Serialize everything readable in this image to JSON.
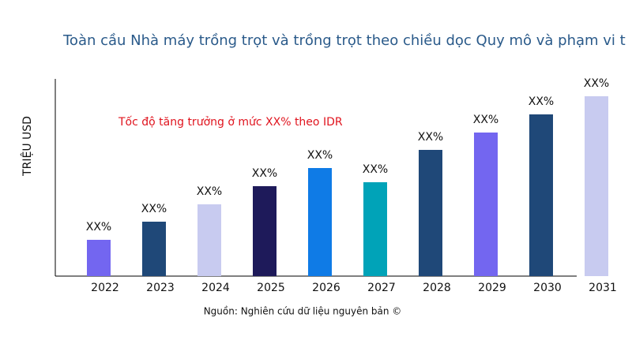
{
  "chart_data": {
    "type": "bar",
    "title": "Toàn cầu Nhà máy trồng trọt và trồng trọt theo chiều dọc Quy mô và phạm vi t",
    "annotation": "Tốc độ tăng trưởng ở mức XX% theo IDR",
    "y_label": "TRIỆU USD",
    "source": "Nguồn: Nghiên cứu dữ liệu nguyên bản ©",
    "categories": [
      "2022",
      "2023",
      "2024",
      "2025",
      "2026",
      "2027",
      "2028",
      "2029",
      "2030",
      "2031"
    ],
    "values": [
      46,
      69,
      91,
      114,
      137,
      119,
      160,
      182,
      205,
      228
    ],
    "value_labels": [
      "XX%",
      "XX%",
      "XX%",
      "XX%",
      "XX%",
      "XX%",
      "XX%",
      "XX%",
      "XX%",
      "XX%"
    ],
    "colors": [
      "#7366f0",
      "#1f4878",
      "#c8cbf0",
      "#1e1a5a",
      "#0f7be6",
      "#00a3b8",
      "#1f4878",
      "#7366f0",
      "#1f4878",
      "#c8cbf0"
    ],
    "ylim": [
      0,
      250
    ]
  }
}
